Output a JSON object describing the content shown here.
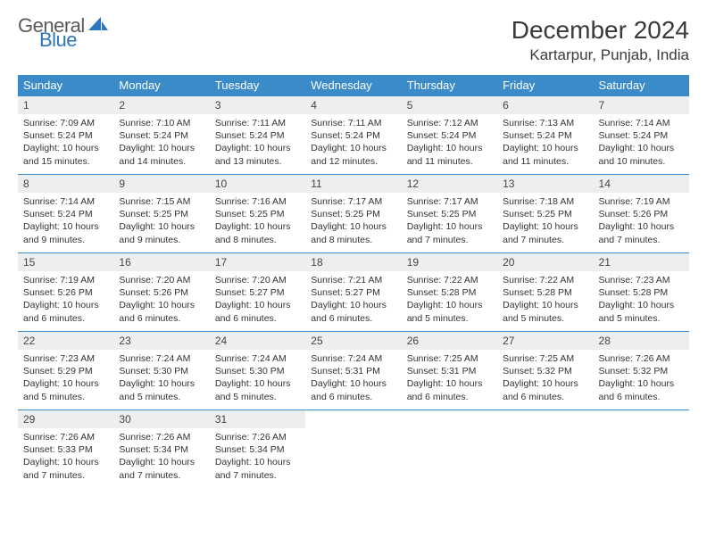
{
  "logo": {
    "general": "General",
    "blue": "Blue"
  },
  "header": {
    "title": "December 2024",
    "location": "Kartarpur, Punjab, India"
  },
  "colors": {
    "header_bg": "#3b8bc9",
    "daynum_bg": "#eceeef",
    "logo_blue": "#2b76bf"
  },
  "days_of_week": [
    "Sunday",
    "Monday",
    "Tuesday",
    "Wednesday",
    "Thursday",
    "Friday",
    "Saturday"
  ],
  "weeks": [
    [
      {
        "n": "1",
        "sr": "7:09 AM",
        "ss": "5:24 PM",
        "dl": "10 hours and 15 minutes."
      },
      {
        "n": "2",
        "sr": "7:10 AM",
        "ss": "5:24 PM",
        "dl": "10 hours and 14 minutes."
      },
      {
        "n": "3",
        "sr": "7:11 AM",
        "ss": "5:24 PM",
        "dl": "10 hours and 13 minutes."
      },
      {
        "n": "4",
        "sr": "7:11 AM",
        "ss": "5:24 PM",
        "dl": "10 hours and 12 minutes."
      },
      {
        "n": "5",
        "sr": "7:12 AM",
        "ss": "5:24 PM",
        "dl": "10 hours and 11 minutes."
      },
      {
        "n": "6",
        "sr": "7:13 AM",
        "ss": "5:24 PM",
        "dl": "10 hours and 11 minutes."
      },
      {
        "n": "7",
        "sr": "7:14 AM",
        "ss": "5:24 PM",
        "dl": "10 hours and 10 minutes."
      }
    ],
    [
      {
        "n": "8",
        "sr": "7:14 AM",
        "ss": "5:24 PM",
        "dl": "10 hours and 9 minutes."
      },
      {
        "n": "9",
        "sr": "7:15 AM",
        "ss": "5:25 PM",
        "dl": "10 hours and 9 minutes."
      },
      {
        "n": "10",
        "sr": "7:16 AM",
        "ss": "5:25 PM",
        "dl": "10 hours and 8 minutes."
      },
      {
        "n": "11",
        "sr": "7:17 AM",
        "ss": "5:25 PM",
        "dl": "10 hours and 8 minutes."
      },
      {
        "n": "12",
        "sr": "7:17 AM",
        "ss": "5:25 PM",
        "dl": "10 hours and 7 minutes."
      },
      {
        "n": "13",
        "sr": "7:18 AM",
        "ss": "5:25 PM",
        "dl": "10 hours and 7 minutes."
      },
      {
        "n": "14",
        "sr": "7:19 AM",
        "ss": "5:26 PM",
        "dl": "10 hours and 7 minutes."
      }
    ],
    [
      {
        "n": "15",
        "sr": "7:19 AM",
        "ss": "5:26 PM",
        "dl": "10 hours and 6 minutes."
      },
      {
        "n": "16",
        "sr": "7:20 AM",
        "ss": "5:26 PM",
        "dl": "10 hours and 6 minutes."
      },
      {
        "n": "17",
        "sr": "7:20 AM",
        "ss": "5:27 PM",
        "dl": "10 hours and 6 minutes."
      },
      {
        "n": "18",
        "sr": "7:21 AM",
        "ss": "5:27 PM",
        "dl": "10 hours and 6 minutes."
      },
      {
        "n": "19",
        "sr": "7:22 AM",
        "ss": "5:28 PM",
        "dl": "10 hours and 5 minutes."
      },
      {
        "n": "20",
        "sr": "7:22 AM",
        "ss": "5:28 PM",
        "dl": "10 hours and 5 minutes."
      },
      {
        "n": "21",
        "sr": "7:23 AM",
        "ss": "5:28 PM",
        "dl": "10 hours and 5 minutes."
      }
    ],
    [
      {
        "n": "22",
        "sr": "7:23 AM",
        "ss": "5:29 PM",
        "dl": "10 hours and 5 minutes."
      },
      {
        "n": "23",
        "sr": "7:24 AM",
        "ss": "5:30 PM",
        "dl": "10 hours and 5 minutes."
      },
      {
        "n": "24",
        "sr": "7:24 AM",
        "ss": "5:30 PM",
        "dl": "10 hours and 5 minutes."
      },
      {
        "n": "25",
        "sr": "7:24 AM",
        "ss": "5:31 PM",
        "dl": "10 hours and 6 minutes."
      },
      {
        "n": "26",
        "sr": "7:25 AM",
        "ss": "5:31 PM",
        "dl": "10 hours and 6 minutes."
      },
      {
        "n": "27",
        "sr": "7:25 AM",
        "ss": "5:32 PM",
        "dl": "10 hours and 6 minutes."
      },
      {
        "n": "28",
        "sr": "7:26 AM",
        "ss": "5:32 PM",
        "dl": "10 hours and 6 minutes."
      }
    ],
    [
      {
        "n": "29",
        "sr": "7:26 AM",
        "ss": "5:33 PM",
        "dl": "10 hours and 7 minutes."
      },
      {
        "n": "30",
        "sr": "7:26 AM",
        "ss": "5:34 PM",
        "dl": "10 hours and 7 minutes."
      },
      {
        "n": "31",
        "sr": "7:26 AM",
        "ss": "5:34 PM",
        "dl": "10 hours and 7 minutes."
      },
      null,
      null,
      null,
      null
    ]
  ],
  "labels": {
    "sunrise": "Sunrise:",
    "sunset": "Sunset:",
    "daylight": "Daylight:"
  }
}
